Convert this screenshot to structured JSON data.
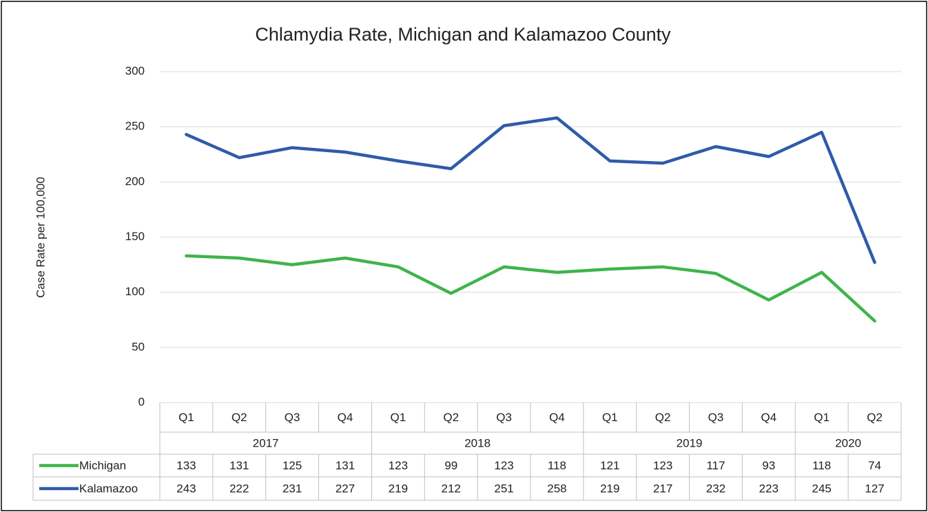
{
  "chart_data": {
    "type": "line",
    "title": "Chlamydia Rate, Michigan and Kalamazoo County",
    "y_label": "Case Rate per 100,000",
    "categories": [
      "Q1",
      "Q2",
      "Q3",
      "Q4",
      "Q1",
      "Q2",
      "Q3",
      "Q4",
      "Q1",
      "Q2",
      "Q3",
      "Q4",
      "Q1",
      "Q2"
    ],
    "category_groups": [
      "2017",
      "2018",
      "2019",
      "2020"
    ],
    "series": [
      {
        "name": "Michigan",
        "color": "#3eb44a",
        "values": [
          133,
          131,
          125,
          131,
          123,
          99,
          123,
          118,
          121,
          123,
          117,
          93,
          118,
          74
        ]
      },
      {
        "name": "Kalamazoo",
        "color": "#2f5ba8",
        "values": [
          243,
          222,
          231,
          227,
          219,
          212,
          251,
          258,
          219,
          217,
          232,
          223,
          245,
          127
        ]
      }
    ],
    "ylim": [
      0,
      300
    ],
    "yticks": [
      0,
      50,
      100,
      150,
      200,
      250,
      300
    ],
    "grid": true,
    "data_table": true
  }
}
